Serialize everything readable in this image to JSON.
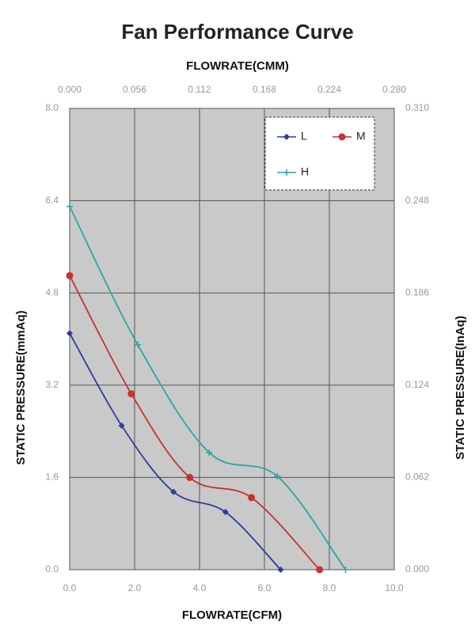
{
  "chart_data": {
    "type": "line",
    "title": "Fan Performance Curve",
    "x_label": "FLOWRATE(CFM)",
    "x2_label": "FLOWRATE(CMM)",
    "y_label": "STATIC PRESSURE(mmAq)",
    "y2_label": "STATIC PRESSURE(InAq)",
    "xlim": [
      0,
      10
    ],
    "xticks": [
      {
        "value": 0,
        "label": "0.0"
      },
      {
        "value": 2,
        "label": "2.0"
      },
      {
        "value": 4,
        "label": "4.0"
      },
      {
        "value": 6,
        "label": "6.0"
      },
      {
        "value": 8,
        "label": "8.0"
      },
      {
        "value": 10,
        "label": "10.0"
      }
    ],
    "x2lim": [
      0,
      0.28
    ],
    "x2ticks": [
      {
        "value": 0,
        "label": "0.000"
      },
      {
        "value": 0.056,
        "label": "0.056"
      },
      {
        "value": 0.112,
        "label": "0.112"
      },
      {
        "value": 0.168,
        "label": "0.168"
      },
      {
        "value": 0.224,
        "label": "0.224"
      },
      {
        "value": 0.28,
        "label": "0.280"
      }
    ],
    "ylim": [
      0,
      8
    ],
    "yticks": [
      {
        "value": 0,
        "label": "0.0"
      },
      1.6,
      3.2,
      4.8,
      6.4,
      {
        "value": 8,
        "label": "8.0"
      }
    ],
    "y2lim": [
      0,
      0.31
    ],
    "y2ticks": [
      {
        "value": 0,
        "label": "0.000"
      },
      0.062,
      0.124,
      0.186,
      0.248,
      {
        "value": 0.31,
        "label": "0.310"
      }
    ],
    "grid": true,
    "legend": "upper right",
    "series": [
      {
        "name": "L",
        "color": "#2f3a9e",
        "marker": "diamond",
        "x": [
          0,
          1.6,
          3.2,
          4.8,
          6.5
        ],
        "values": [
          4.1,
          2.5,
          1.35,
          1.0,
          0
        ]
      },
      {
        "name": "M",
        "color": "#c43232",
        "marker": "circle",
        "x": [
          0,
          1.9,
          3.7,
          5.6,
          7.7
        ],
        "values": [
          5.1,
          3.05,
          1.6,
          1.25,
          0
        ]
      },
      {
        "name": "H",
        "color": "#2aa5a5",
        "marker": "plus",
        "x": [
          0,
          2.1,
          4.3,
          6.4,
          8.5
        ],
        "values": [
          6.3,
          3.9,
          2.03,
          1.62,
          0
        ]
      }
    ]
  }
}
